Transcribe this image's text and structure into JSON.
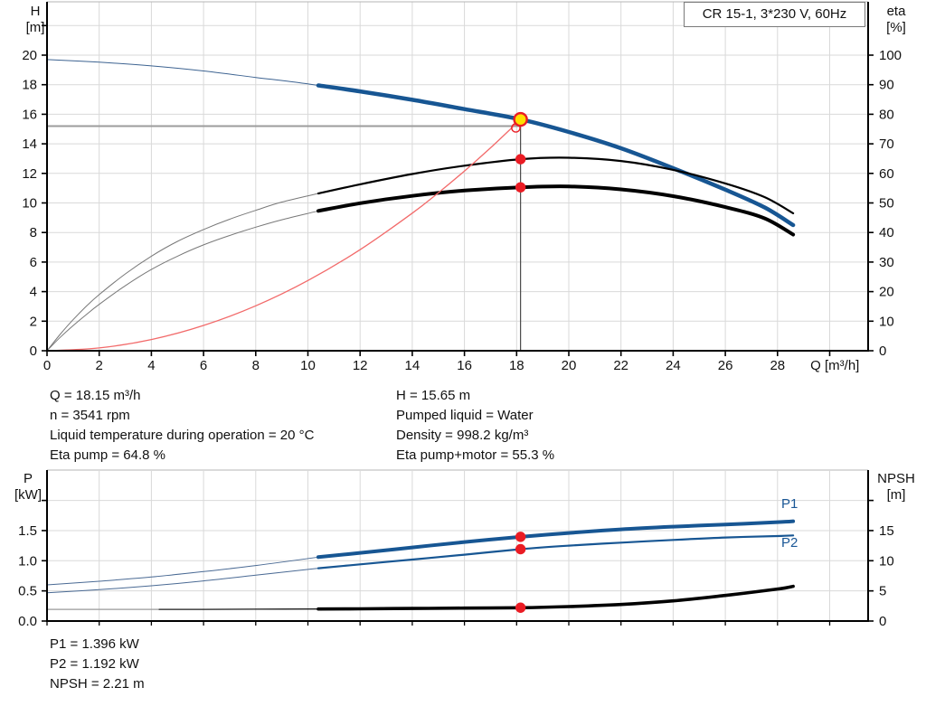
{
  "title_box": {
    "label": "CR 15-1, 3*230 V, 60Hz"
  },
  "operating_point": {
    "Q": 18.15,
    "H": 15.65,
    "eta_pump": 64.8,
    "eta_pump_motor": 55.3,
    "P1": 1.396,
    "P2": 1.192,
    "NPSH": 2.21,
    "n_rpm": 3541
  },
  "info": {
    "left": [
      "Q = 18.15 m³/h",
      "n = 3541 rpm",
      "Liquid temperature during operation = 20 °C",
      "Eta pump = 64.8 %"
    ],
    "right": [
      "H = 15.65 m",
      "Pumped liquid = Water",
      "Density = 998.2 kg/m³",
      "Eta pump+motor = 55.3 %"
    ],
    "bottom": [
      "P1 = 1.396 kW",
      "P2 = 1.192 kW",
      "NPSH = 2.21 m"
    ]
  },
  "colors": {
    "curve_blue": "#175693",
    "lead_blue": "#3d6391",
    "curve_black": "#000000",
    "lead_gray": "#787878",
    "npsh_gray": "#9a9a9a",
    "system_red": "#f26a6a",
    "dot_red": "#ea1c24",
    "duty_yellow": "#ffdf00",
    "grid": "#d9d9d9",
    "border": "#b4b4b4",
    "axis": "#000000",
    "crosshair_h": "#9c9c9c",
    "crosshair_v": "#4a4a4a",
    "label_blue": "#1a5796",
    "text": "#111111"
  },
  "chart_data": [
    {
      "type": "line",
      "name": "qh-eta-chart",
      "xlabel": "Q [m³/h]",
      "x_ticks": [
        "0",
        "2",
        "4",
        "6",
        "8",
        "10",
        "12",
        "14",
        "16",
        "18",
        "20",
        "22",
        "24",
        "26",
        "28"
      ],
      "x_tick_values": [
        0,
        2,
        4,
        6,
        8,
        10,
        12,
        14,
        16,
        18,
        20,
        22,
        24,
        26,
        28
      ],
      "x_unit_pos": 30.2,
      "y_left": {
        "title": [
          "H",
          "[m]"
        ],
        "ticks": [
          "0",
          "2",
          "4",
          "6",
          "8",
          "10",
          "12",
          "14",
          "16",
          "18",
          "20"
        ],
        "tick_values": [
          0,
          2,
          4,
          6,
          8,
          10,
          12,
          14,
          16,
          18,
          20
        ],
        "range": [
          0,
          23.6
        ]
      },
      "y_right": {
        "title": [
          "eta",
          "[%]"
        ],
        "ticks": [
          "0",
          "10",
          "20",
          "30",
          "40",
          "50",
          "60",
          "70",
          "80",
          "90",
          "100"
        ],
        "tick_values": [
          0,
          10,
          20,
          30,
          40,
          50,
          60,
          70,
          80,
          90,
          100
        ],
        "range": [
          0,
          118
        ]
      },
      "series": [
        {
          "id": "qh-lead",
          "scale": "H",
          "color": "#3d6391",
          "width": 1,
          "points": [
            [
              0,
              19.7
            ],
            [
              2,
              19.52
            ],
            [
              4,
              19.27
            ],
            [
              6,
              18.93
            ],
            [
              8,
              18.49
            ],
            [
              9.2,
              18.24
            ],
            [
              10.4,
              17.95
            ]
          ]
        },
        {
          "id": "qh-main",
          "scale": "H",
          "color": "#175693",
          "width": 4.5,
          "points": [
            [
              10.4,
              17.95
            ],
            [
              12,
              17.55
            ],
            [
              14,
              16.98
            ],
            [
              16,
              16.35
            ],
            [
              18.15,
              15.65
            ],
            [
              20,
              14.8
            ],
            [
              22,
              13.7
            ],
            [
              24,
              12.35
            ],
            [
              26,
              10.9
            ],
            [
              27.5,
              9.7
            ],
            [
              28.6,
              8.5
            ]
          ]
        },
        {
          "id": "eta-pump-lead",
          "scale": "eta",
          "color": "#787878",
          "width": 1,
          "points": [
            [
              0,
              0
            ],
            [
              0.5,
              5.5
            ],
            [
              1,
              10.5
            ],
            [
              1.5,
              15
            ],
            [
              2,
              19
            ],
            [
              3,
              26
            ],
            [
              4,
              32
            ],
            [
              5,
              37
            ],
            [
              6,
              41
            ],
            [
              7,
              44.5
            ],
            [
              8,
              47.5
            ],
            [
              9,
              50.3
            ],
            [
              10.4,
              53.2
            ]
          ]
        },
        {
          "id": "eta-pump-main",
          "scale": "eta",
          "color": "#000000",
          "width": 2.2,
          "points": [
            [
              10.4,
              53.2
            ],
            [
              12,
              56.3
            ],
            [
              14,
              59.8
            ],
            [
              16,
              62.6
            ],
            [
              18.15,
              64.8
            ],
            [
              20,
              65.3
            ],
            [
              22,
              64.2
            ],
            [
              24,
              61.2
            ],
            [
              26,
              56.6
            ],
            [
              27.5,
              52
            ],
            [
              28.6,
              46.5
            ]
          ]
        },
        {
          "id": "eta-pump-motor-lead",
          "scale": "eta",
          "color": "#787878",
          "width": 1,
          "points": [
            [
              0,
              0
            ],
            [
              0.5,
              4.5
            ],
            [
              1,
              8.5
            ],
            [
              1.5,
              12.2
            ],
            [
              2,
              15.7
            ],
            [
              3,
              22
            ],
            [
              4,
              27.5
            ],
            [
              5,
              32
            ],
            [
              6,
              35.8
            ],
            [
              7,
              39
            ],
            [
              8,
              41.8
            ],
            [
              9,
              44.3
            ],
            [
              10.4,
              47.3
            ]
          ]
        },
        {
          "id": "eta-pump-motor-main",
          "scale": "eta",
          "color": "#000000",
          "width": 4,
          "points": [
            [
              10.4,
              47.3
            ],
            [
              12,
              49.9
            ],
            [
              14,
              52.4
            ],
            [
              16,
              54.2
            ],
            [
              18.15,
              55.3
            ],
            [
              20,
              55.6
            ],
            [
              22,
              54.6
            ],
            [
              24,
              52.3
            ],
            [
              26,
              48.6
            ],
            [
              27.5,
              44.8
            ],
            [
              28.6,
              39.3
            ]
          ]
        },
        {
          "id": "system-curve",
          "scale": "H",
          "color": "#f26a6a",
          "width": 1.3,
          "points": [
            [
              0,
              0
            ],
            [
              2,
              0.19
            ],
            [
              4,
              0.76
            ],
            [
              6,
              1.71
            ],
            [
              8,
              3.04
            ],
            [
              10,
              4.75
            ],
            [
              12,
              6.84
            ],
            [
              14,
              9.31
            ],
            [
              15,
              10.69
            ],
            [
              16,
              12.16
            ],
            [
              17,
              13.73
            ],
            [
              18.15,
              15.65
            ]
          ]
        }
      ],
      "crosshair": {
        "h_value": 15.2,
        "h_from": 0,
        "h_to": 18.15,
        "v_at": 18.15,
        "v_from": 15.65,
        "v_to": 0
      },
      "markers": [
        {
          "id": "requested-duty-point",
          "scale": "H",
          "x": 17.97,
          "y": 15.08,
          "r": 4.6,
          "fill": "none",
          "stroke": "#ea1c24",
          "sw": 1.4
        },
        {
          "id": "duty-point",
          "scale": "H",
          "x": 18.15,
          "y": 15.65,
          "r": 7,
          "fill": "#ffdf00",
          "stroke": "#ea1c24",
          "sw": 2.4
        },
        {
          "id": "eta-pump-point",
          "scale": "eta",
          "x": 18.15,
          "y": 64.8,
          "r": 5.7,
          "fill": "#ea1c24",
          "stroke": "none",
          "sw": 0
        },
        {
          "id": "eta-pump-motor-point",
          "scale": "eta",
          "x": 18.15,
          "y": 55.3,
          "r": 5.7,
          "fill": "#ea1c24",
          "stroke": "none",
          "sw": 0
        }
      ]
    },
    {
      "type": "line",
      "name": "p-npsh-chart",
      "y_left": {
        "title": [
          "P",
          "[kW]"
        ],
        "ticks": [
          "0.0",
          "0.5",
          "1.0",
          "1.5"
        ],
        "tick_values": [
          0,
          0.5,
          1.0,
          1.5
        ],
        "extra_ticks": [
          2.0
        ],
        "range": [
          0,
          2.5
        ]
      },
      "y_right": {
        "title": [
          "NPSH",
          "[m]"
        ],
        "ticks": [
          "0",
          "5",
          "10",
          "15"
        ],
        "tick_values": [
          0,
          5,
          10,
          15
        ],
        "extra_ticks": [
          20
        ],
        "range": [
          0,
          25
        ]
      },
      "series": [
        {
          "id": "p1-lead",
          "scale": "kW",
          "color": "#4a6a94",
          "width": 1,
          "points": [
            [
              0,
              0.6
            ],
            [
              2,
              0.66
            ],
            [
              4,
              0.73
            ],
            [
              6,
              0.82
            ],
            [
              8,
              0.92
            ],
            [
              10.4,
              1.06
            ]
          ]
        },
        {
          "id": "p1-main",
          "scale": "kW",
          "color": "#175693",
          "width": 4,
          "points": [
            [
              10.4,
              1.06
            ],
            [
              12,
              1.13
            ],
            [
              14,
              1.22
            ],
            [
              16,
              1.31
            ],
            [
              18.15,
              1.396
            ],
            [
              20,
              1.46
            ],
            [
              22,
              1.52
            ],
            [
              24,
              1.565
            ],
            [
              26,
              1.6
            ],
            [
              28,
              1.64
            ],
            [
              28.6,
              1.655
            ]
          ]
        },
        {
          "id": "p2-lead",
          "scale": "kW",
          "color": "#4a6a94",
          "width": 1,
          "points": [
            [
              0,
              0.47
            ],
            [
              2,
              0.52
            ],
            [
              4,
              0.585
            ],
            [
              6,
              0.665
            ],
            [
              8,
              0.76
            ],
            [
              10.4,
              0.875
            ]
          ]
        },
        {
          "id": "p2-main",
          "scale": "kW",
          "color": "#175693",
          "width": 2.2,
          "points": [
            [
              10.4,
              0.875
            ],
            [
              12,
              0.94
            ],
            [
              14,
              1.02
            ],
            [
              16,
              1.1
            ],
            [
              18.15,
              1.192
            ],
            [
              20,
              1.25
            ],
            [
              22,
              1.3
            ],
            [
              24,
              1.345
            ],
            [
              26,
              1.385
            ],
            [
              28,
              1.41
            ],
            [
              28.6,
              1.42
            ]
          ]
        },
        {
          "id": "npsh-gray",
          "scale": "m",
          "color": "#9a9a9a",
          "width": 1.3,
          "points": [
            [
              0,
              1.93
            ],
            [
              2,
              1.93
            ],
            [
              4.3,
              1.93
            ]
          ]
        },
        {
          "id": "npsh-lead",
          "scale": "m",
          "color": "#1a1a1a",
          "width": 1.3,
          "points": [
            [
              4.3,
              1.93
            ],
            [
              6,
              1.94
            ],
            [
              8,
              1.96
            ],
            [
              10.4,
              2.0
            ]
          ]
        },
        {
          "id": "npsh-main",
          "scale": "m",
          "color": "#000000",
          "width": 3.6,
          "points": [
            [
              10.4,
              2.0
            ],
            [
              12,
              2.03
            ],
            [
              14,
              2.08
            ],
            [
              16,
              2.14
            ],
            [
              18.15,
              2.21
            ],
            [
              20,
              2.4
            ],
            [
              22,
              2.75
            ],
            [
              24,
              3.35
            ],
            [
              26,
              4.25
            ],
            [
              28,
              5.3
            ],
            [
              28.6,
              5.75
            ]
          ]
        }
      ],
      "markers": [
        {
          "id": "p1-point",
          "scale": "kW",
          "x": 18.15,
          "y": 1.396,
          "r": 5.7,
          "fill": "#ea1c24",
          "stroke": "none",
          "sw": 0
        },
        {
          "id": "p2-point",
          "scale": "kW",
          "x": 18.15,
          "y": 1.192,
          "r": 5.7,
          "fill": "#ea1c24",
          "stroke": "none",
          "sw": 0
        },
        {
          "id": "npsh-point",
          "scale": "m",
          "x": 18.15,
          "y": 2.21,
          "r": 5.7,
          "fill": "#ea1c24",
          "stroke": "none",
          "sw": 0
        }
      ],
      "curve_labels": [
        {
          "text": "P1"
        },
        {
          "text": "P2"
        }
      ]
    }
  ]
}
